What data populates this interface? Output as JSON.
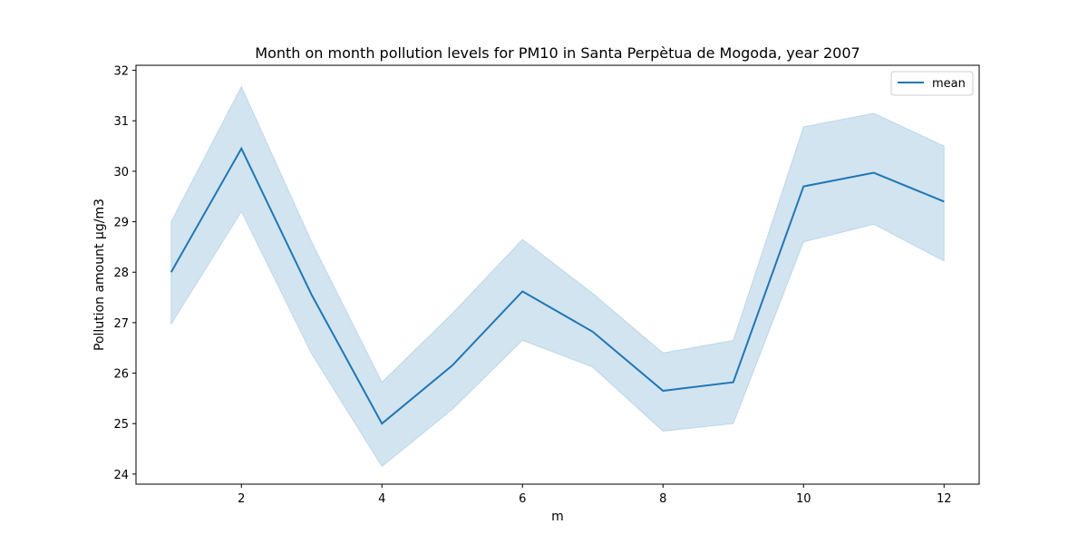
{
  "chart_data": {
    "type": "line",
    "title": "Month on month pollution levels for PM10 in Santa Perpètua de Mogoda, year 2007",
    "xlabel": "m",
    "ylabel": "Pollution amount µg/m3",
    "xlim": [
      0.5,
      12.5
    ],
    "ylim": [
      23.8,
      32.1
    ],
    "x_ticks": [
      2,
      4,
      6,
      8,
      10,
      12
    ],
    "y_ticks": [
      24,
      25,
      26,
      27,
      28,
      29,
      30,
      31,
      32
    ],
    "grid": false,
    "legend_position": "top-right",
    "series": [
      {
        "name": "mean",
        "x": [
          1,
          2,
          3,
          4,
          5,
          6,
          7,
          8,
          9,
          10,
          11,
          12
        ],
        "y": [
          28.0,
          30.45,
          27.55,
          25.0,
          26.15,
          27.62,
          26.82,
          25.65,
          25.82,
          29.7,
          29.97,
          29.4
        ],
        "ci_upper": [
          29.0,
          31.68,
          28.6,
          25.82,
          27.18,
          28.65,
          27.58,
          26.4,
          26.65,
          30.88,
          31.15,
          30.5
        ],
        "ci_lower": [
          26.97,
          29.2,
          26.38,
          24.15,
          25.28,
          26.65,
          26.12,
          24.85,
          25.0,
          28.6,
          28.95,
          28.22
        ],
        "color": "#1f77b4"
      }
    ]
  }
}
